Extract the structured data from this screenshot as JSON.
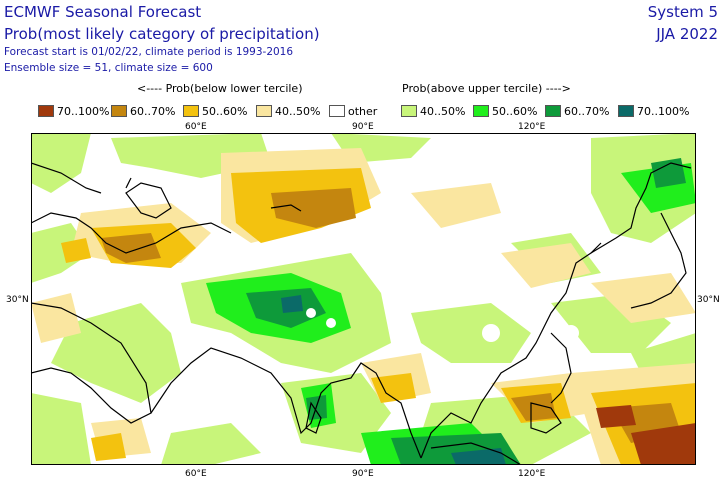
{
  "header": {
    "title": "ECMWF Seasonal Forecast",
    "subtitle": "Prob(most likely category of precipitation)",
    "meta_line1": "Forecast start is 01/02/22, climate period is 1993-2016",
    "meta_line2": "Ensemble size = 51, climate size = 600",
    "system": "System 5",
    "season": "JJA 2022"
  },
  "legend": {
    "below_header": "<---- Prob(below lower tercile)",
    "above_header": "Prob(above upper tercile) ---->",
    "items": [
      {
        "label": "70..100%",
        "color": "#a0390c"
      },
      {
        "label": "60..70%",
        "color": "#c4860f"
      },
      {
        "label": "50..60%",
        "color": "#f3c20f"
      },
      {
        "label": "40..50%",
        "color": "#fae6a0"
      },
      {
        "label": "other",
        "color": "#ffffff"
      },
      {
        "label": "40..50%",
        "color": "#c8f57a"
      },
      {
        "label": "50..60%",
        "color": "#20ee1c"
      },
      {
        "label": "60..70%",
        "color": "#0e9a3a"
      },
      {
        "label": "70..100%",
        "color": "#0b6a68"
      }
    ]
  },
  "axes": {
    "lon_ticks": [
      "60°E",
      "90°E",
      "120°E"
    ],
    "lat_ticks": [
      "30°N"
    ]
  }
}
